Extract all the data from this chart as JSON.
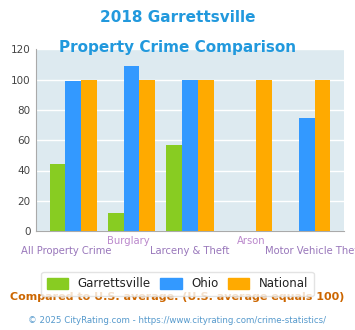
{
  "title_line1": "2018 Garrettsville",
  "title_line2": "Property Crime Comparison",
  "color_garrettsville": "#88cc22",
  "color_ohio": "#3399ff",
  "color_national": "#ffaa00",
  "color_title": "#2299dd",
  "color_label_top": "#bb88cc",
  "color_label_bot": "#9977bb",
  "color_bg_plot": "#ddeaf0",
  "color_bg_fig": "#ffffff",
  "color_grid": "#ffffff",
  "color_footnote": "#cc6600",
  "color_copyright": "#5599cc",
  "color_legend_text": "#222222",
  "ylim": [
    0,
    120
  ],
  "yticks": [
    0,
    20,
    40,
    60,
    80,
    100,
    120
  ],
  "footnote": "Compared to U.S. average. (U.S. average equals 100)",
  "copyright": "© 2025 CityRating.com - https://www.cityrating.com/crime-statistics/",
  "garrettsville_vals": [
    44,
    12,
    57,
    0,
    0
  ],
  "ohio_vals": [
    99,
    109,
    100,
    0,
    75
  ],
  "national_vals": [
    100,
    100,
    100,
    100,
    100
  ],
  "top_labels": [
    "",
    "Burglary",
    "",
    "Arson",
    ""
  ],
  "bot_labels": [
    "All Property Crime",
    "",
    "Larceny & Theft",
    "",
    "Motor Vehicle Theft"
  ],
  "legend_labels": [
    "Garrettsville",
    "Ohio",
    "National"
  ],
  "n_groups": 5
}
